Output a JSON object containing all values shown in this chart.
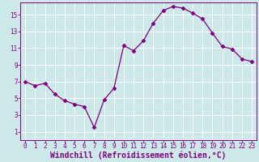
{
  "x": [
    0,
    1,
    2,
    3,
    4,
    5,
    6,
    7,
    8,
    9,
    10,
    11,
    12,
    13,
    14,
    15,
    16,
    17,
    18,
    19,
    20,
    21,
    22,
    23
  ],
  "y": [
    7.0,
    6.5,
    6.8,
    5.5,
    4.7,
    4.3,
    4.0,
    1.5,
    4.8,
    6.2,
    11.3,
    10.7,
    11.9,
    14.0,
    15.5,
    16.0,
    15.8,
    15.2,
    14.5,
    12.8,
    11.2,
    10.9,
    9.7,
    9.4
  ],
  "line_color": "#800080",
  "marker": "D",
  "marker_size": 2.5,
  "bg_color": "#cce8e8",
  "grid_color": "#ffffff",
  "xlabel": "Windchill (Refroidissement éolien,°C)",
  "ylabel": "",
  "xlim": [
    -0.5,
    23.5
  ],
  "ylim": [
    0,
    16.5
  ],
  "yticks": [
    1,
    3,
    5,
    7,
    9,
    11,
    13,
    15
  ],
  "xticks": [
    0,
    1,
    2,
    3,
    4,
    5,
    6,
    7,
    8,
    9,
    10,
    11,
    12,
    13,
    14,
    15,
    16,
    17,
    18,
    19,
    20,
    21,
    22,
    23
  ],
  "tick_color": "#800080",
  "label_fontsize": 5.5,
  "axis_label_fontsize": 7,
  "spine_color": "#800080"
}
